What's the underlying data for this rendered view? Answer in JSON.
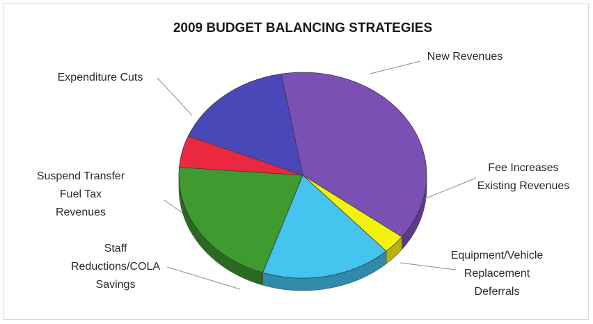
{
  "chart_data": {
    "type": "pie",
    "title": "2009 BUDGET BALANCING STRATEGIES",
    "slices": [
      {
        "label": "New Revenues",
        "lines": [
          "New Revenues"
        ],
        "value": 38,
        "color": "#7b4fb4",
        "side": "#5c3a88"
      },
      {
        "label": "Fee Increases Existing Revenues",
        "lines": [
          "Fee Increases",
          "Existing Revenues"
        ],
        "value": 3,
        "color": "#f2f20a",
        "side": "#b5b507"
      },
      {
        "label": "Equipment/Vehicle Replacement Deferrals",
        "lines": [
          "Equipment/Vehicle",
          "Replacement",
          "Deferrals"
        ],
        "value": 17,
        "color": "#45c4ef",
        "side": "#2f8bab"
      },
      {
        "label": "Staff Reductions/COLA Savings",
        "lines": [
          "Staff",
          "Reductions/COLA",
          "Savings"
        ],
        "value": 21,
        "color": "#3f9a30",
        "side": "#2a6a20"
      },
      {
        "label": "Suspend Transfer Fuel Tax Revenues",
        "lines": [
          "Suspend Transfer",
          "Fuel Tax",
          "Revenues"
        ],
        "value": 5,
        "color": "#ea2840",
        "side": "#a51b2c"
      },
      {
        "label": "Expenditure Cuts",
        "lines": [
          "Expenditure Cuts"
        ],
        "value": 16,
        "color": "#4a48b8",
        "side": "#333285"
      }
    ]
  }
}
